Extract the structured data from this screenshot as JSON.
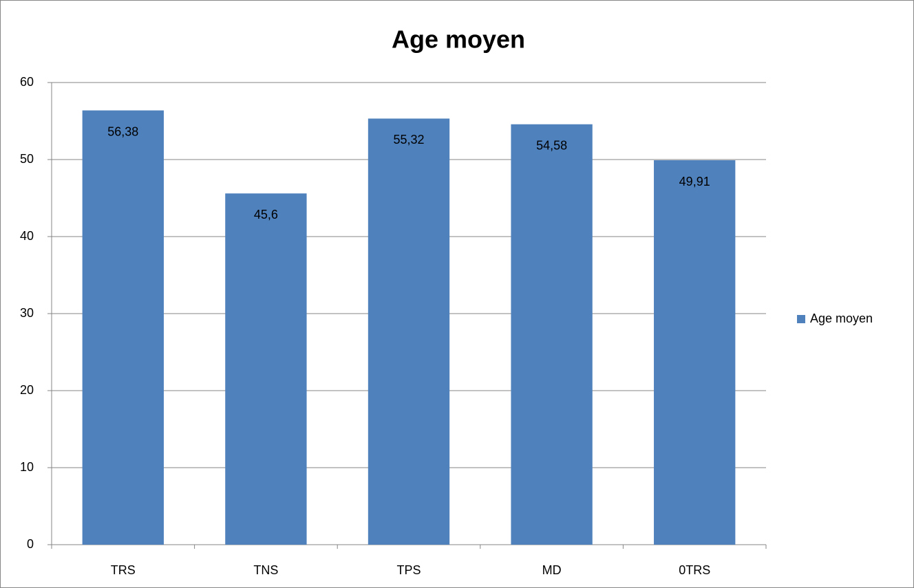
{
  "chart_data": {
    "type": "bar",
    "title": "Age moyen",
    "categories": [
      "TRS",
      "TNS",
      "TPS",
      "MD",
      "0TRS"
    ],
    "series": [
      {
        "name": "Age moyen",
        "color": "#4f81bd",
        "values": [
          56.38,
          45.6,
          55.32,
          54.58,
          49.91
        ],
        "value_labels": [
          "56,38",
          "45,6",
          "55,32",
          "54,58",
          "49,91"
        ]
      }
    ],
    "ylim": [
      0,
      60
    ],
    "yticks": [
      0,
      10,
      20,
      30,
      40,
      50,
      60
    ],
    "grid": true,
    "legend": "right"
  }
}
